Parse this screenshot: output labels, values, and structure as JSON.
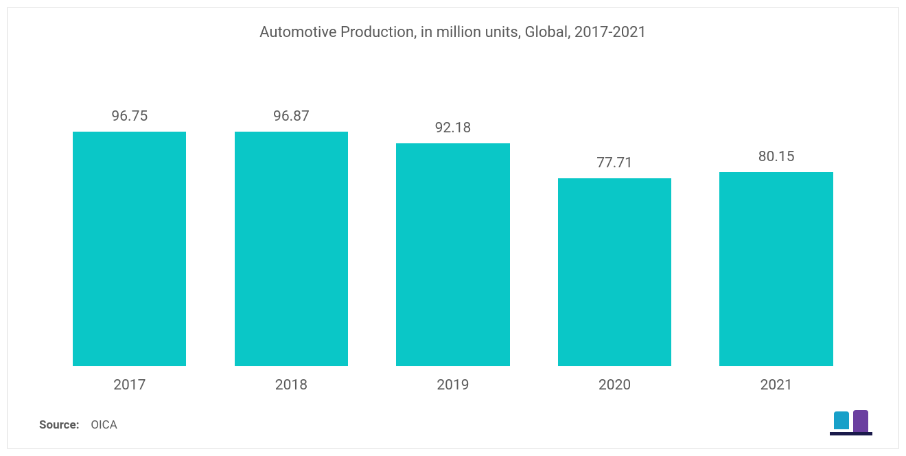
{
  "chart": {
    "type": "bar",
    "title": "Automotive Production, in million units, Global, 2017-2021",
    "title_fontsize": 22,
    "title_color": "#5a5a5a",
    "categories": [
      "2017",
      "2018",
      "2019",
      "2020",
      "2021"
    ],
    "values": [
      96.75,
      96.87,
      92.18,
      77.71,
      80.15
    ],
    "bar_color": "#0ac7c7",
    "value_label_color": "#5a5a5a",
    "value_label_fontsize": 21,
    "category_label_color": "#5a5a5a",
    "category_label_fontsize": 21,
    "ylim": [
      0,
      100
    ],
    "bar_width_ratio": 0.78,
    "background_color": "#ffffff",
    "border_color": "#e0e0e0"
  },
  "source": {
    "label": "Source:",
    "value": "OICA",
    "fontsize": 17,
    "color": "#5a5a5a"
  },
  "logo": {
    "bar1_color": "#18a0c9",
    "bar2_color": "#6b3fa0",
    "underline_color": "#1a1a4a"
  }
}
